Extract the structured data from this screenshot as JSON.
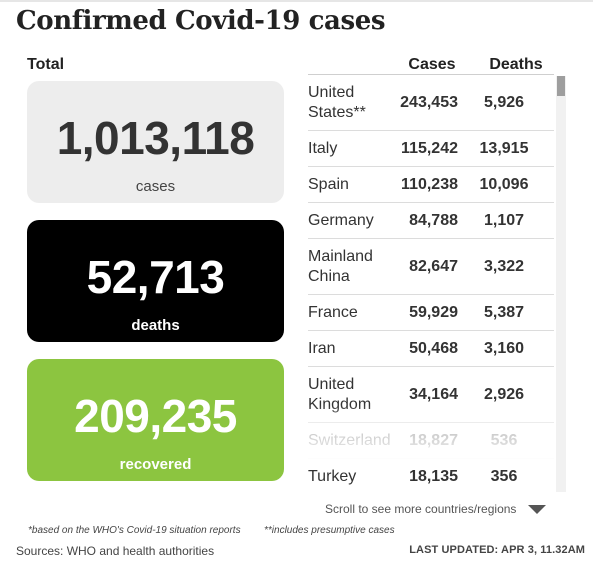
{
  "title": "Confirmed Covid-19 cases",
  "totals": {
    "label": "Total",
    "cases": {
      "value": "1,013,118",
      "label": "cases"
    },
    "deaths": {
      "value": "52,713",
      "label": "deaths"
    },
    "recovered": {
      "value": "209,235",
      "label": "recovered"
    }
  },
  "table": {
    "headers": {
      "cases": "Cases",
      "deaths": "Deaths"
    },
    "rows": [
      {
        "country": "United States**",
        "cases": "243,453",
        "deaths": "5,926"
      },
      {
        "country": "Italy",
        "cases": "115,242",
        "deaths": "13,915"
      },
      {
        "country": "Spain",
        "cases": "110,238",
        "deaths": "10,096"
      },
      {
        "country": "Germany",
        "cases": "84,788",
        "deaths": "1,107"
      },
      {
        "country": "Mainland China",
        "cases": "82,647",
        "deaths": "3,322"
      },
      {
        "country": "France",
        "cases": "59,929",
        "deaths": "5,387"
      },
      {
        "country": "Iran",
        "cases": "50,468",
        "deaths": "3,160"
      },
      {
        "country": "United Kingdom",
        "cases": "34,164",
        "deaths": "2,926"
      },
      {
        "country": "Switzerland",
        "cases": "18,827",
        "deaths": "536"
      },
      {
        "country": "Turkey",
        "cases": "18,135",
        "deaths": "356"
      }
    ]
  },
  "scroll_hint": "Scroll to see more countries/regions",
  "footnotes": {
    "who": "*based on the WHO's Covid-19 situation reports",
    "presumptive": "**includes presumptive cases"
  },
  "sources": "Sources: WHO and health authorities",
  "last_updated": "LAST UPDATED: APR 3, 11.32AM",
  "colors": {
    "cases_card": "#ededed",
    "deaths_card": "#000000",
    "recovered_card": "#8cc540"
  },
  "icons": {
    "scroll_down": "triangle-down-icon"
  }
}
